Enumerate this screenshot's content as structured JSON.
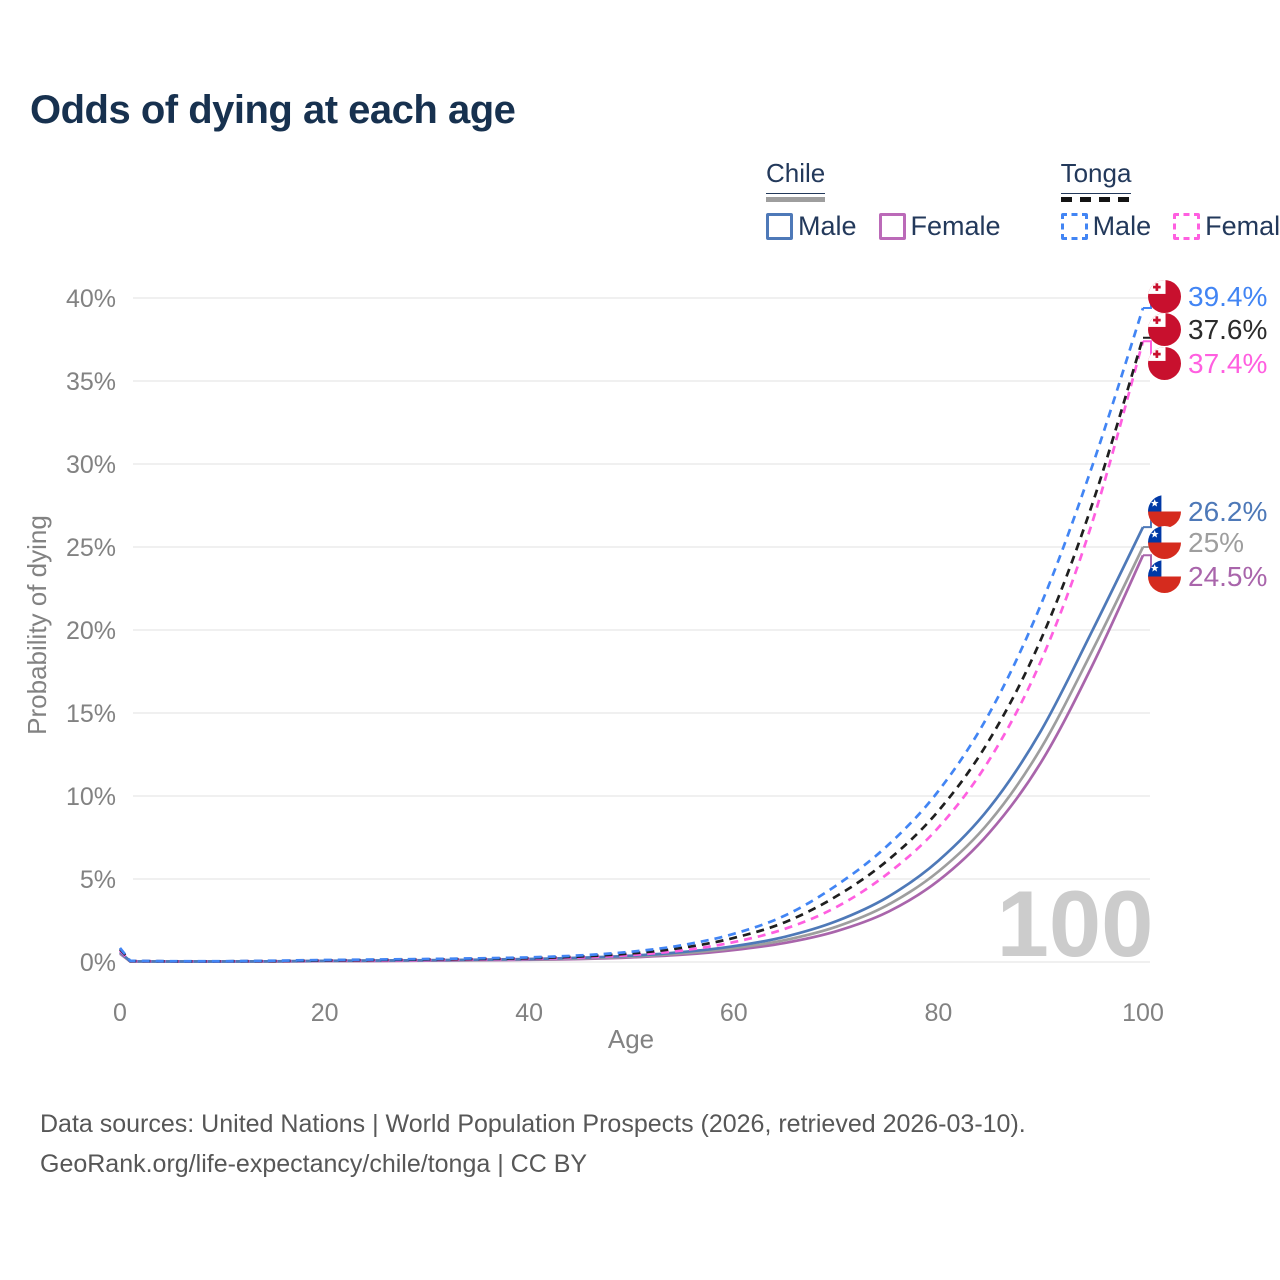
{
  "title": "Odds of dying at each age",
  "watermark_age": "100",
  "legend": {
    "groups": [
      {
        "label": "Chile",
        "line_style": "solid",
        "line_color": "#9e9e9e",
        "items": [
          {
            "label": "Male",
            "color": "#4e79b8",
            "style": "solid"
          },
          {
            "label": "Female",
            "color": "#bb6ab8",
            "style": "solid"
          }
        ]
      },
      {
        "label": "Tonga",
        "line_style": "dashed",
        "line_color": "#141414",
        "items": [
          {
            "label": "Male",
            "color": "#4285f4",
            "style": "dashed"
          },
          {
            "label": "Female",
            "color": "#ff5fe0",
            "style": "dashed"
          }
        ]
      }
    ]
  },
  "chart_data": {
    "type": "line",
    "title": "Odds of dying at each age",
    "xlabel": "Age",
    "ylabel": "Probability of dying",
    "xlim": [
      0,
      100
    ],
    "ylim": [
      0,
      40
    ],
    "x_ticks": [
      0,
      20,
      40,
      60,
      80,
      100
    ],
    "y_ticks": [
      "0%",
      "5%",
      "10%",
      "15%",
      "20%",
      "25%",
      "30%",
      "35%",
      "40%"
    ],
    "grid": true,
    "legend_position": "top-right",
    "x": [
      0,
      1,
      5,
      10,
      15,
      20,
      25,
      30,
      35,
      40,
      45,
      50,
      55,
      60,
      65,
      70,
      75,
      80,
      85,
      90,
      95,
      100
    ],
    "series": [
      {
        "name": "Tonga Male",
        "country": "tonga",
        "group": "male",
        "style": "dashed",
        "color": "#4285f4",
        "label_color": "#4285f4",
        "end_label": "39.4%",
        "values": [
          0.85,
          0.07,
          0.05,
          0.05,
          0.08,
          0.12,
          0.15,
          0.18,
          0.22,
          0.28,
          0.4,
          0.62,
          1.02,
          1.7,
          2.8,
          4.6,
          7.0,
          10.3,
          15.0,
          21.5,
          29.8,
          39.4
        ]
      },
      {
        "name": "Tonga All",
        "country": "tonga",
        "group": "all",
        "style": "dashed",
        "color": "#1f1f1f",
        "label_color": "#2b2b2b",
        "end_label": "37.6%",
        "values": [
          0.78,
          0.06,
          0.04,
          0.04,
          0.06,
          0.09,
          0.12,
          0.15,
          0.18,
          0.23,
          0.33,
          0.52,
          0.86,
          1.45,
          2.4,
          3.95,
          6.1,
          9.1,
          13.4,
          19.4,
          27.5,
          37.6
        ]
      },
      {
        "name": "Tonga Female",
        "country": "tonga",
        "group": "female",
        "style": "dashed",
        "color": "#ff5fe0",
        "label_color": "#ff5fe0",
        "end_label": "37.4%",
        "values": [
          0.7,
          0.05,
          0.04,
          0.04,
          0.05,
          0.07,
          0.09,
          0.12,
          0.15,
          0.19,
          0.27,
          0.42,
          0.7,
          1.2,
          2.0,
          3.3,
          5.3,
          8.1,
          12.2,
          18.1,
          26.4,
          37.4
        ]
      },
      {
        "name": "Chile Male",
        "country": "chile",
        "group": "male",
        "style": "solid",
        "color": "#4e79b8",
        "label_color": "#4e79b8",
        "end_label": "26.2%",
        "values": [
          0.6,
          0.04,
          0.02,
          0.02,
          0.04,
          0.07,
          0.09,
          0.11,
          0.14,
          0.18,
          0.26,
          0.38,
          0.6,
          0.95,
          1.52,
          2.45,
          3.9,
          6.1,
          9.3,
          13.9,
          19.9,
          26.2
        ]
      },
      {
        "name": "Chile All",
        "country": "chile",
        "group": "all",
        "style": "solid",
        "color": "#9e9e9e",
        "label_color": "#9e9e9e",
        "end_label": "25%",
        "values": [
          0.55,
          0.035,
          0.02,
          0.02,
          0.035,
          0.06,
          0.08,
          0.1,
          0.12,
          0.16,
          0.22,
          0.33,
          0.52,
          0.83,
          1.32,
          2.12,
          3.42,
          5.45,
          8.45,
          12.85,
          18.7,
          25.0
        ]
      },
      {
        "name": "Chile Female",
        "country": "chile",
        "group": "female",
        "style": "solid",
        "color": "#a965ab",
        "label_color": "#a965ab",
        "end_label": "24.5%",
        "values": [
          0.5,
          0.03,
          0.015,
          0.015,
          0.03,
          0.05,
          0.06,
          0.08,
          0.1,
          0.13,
          0.18,
          0.28,
          0.44,
          0.72,
          1.15,
          1.85,
          3.0,
          4.9,
          7.8,
          12.0,
          17.8,
          24.5
        ]
      }
    ]
  },
  "footer": {
    "line1": "Data sources: United Nations | World Population Prospects (2026, retrieved 2026-03-10).",
    "line2": "GeoRank.org/life-expectancy/chile/tonga | CC BY"
  }
}
